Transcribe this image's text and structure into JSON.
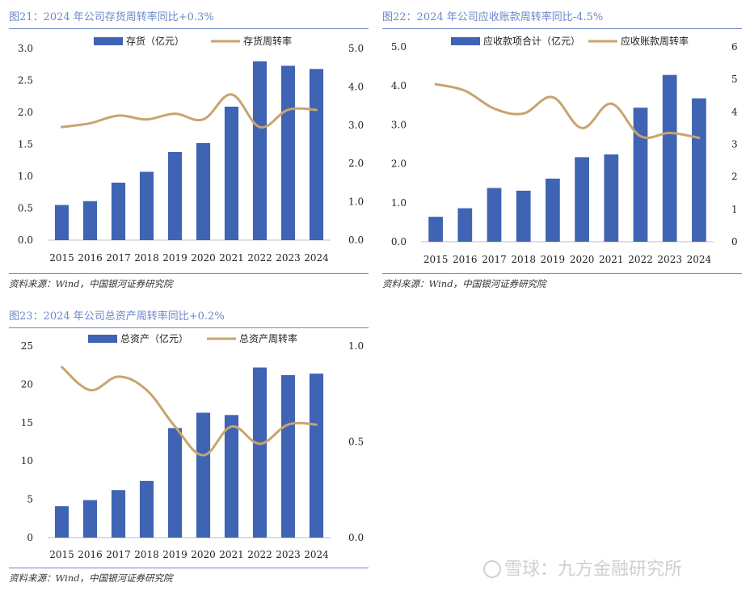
{
  "charts": [
    {
      "title": "图21：2024 年公司存货周转率同比+0.3%",
      "source": "资料来源：Wind，中国银河证券研究院",
      "chart_data": {
        "type": "bar",
        "categories": [
          "2015",
          "2016",
          "2017",
          "2018",
          "2019",
          "2020",
          "2021",
          "2022",
          "2023",
          "2024"
        ],
        "series": [
          {
            "name": "存货（亿元）",
            "type": "bar",
            "axis": "left",
            "values": [
              0.55,
              0.61,
              0.9,
              1.07,
              1.38,
              1.52,
              2.09,
              2.8,
              2.73,
              2.68
            ]
          },
          {
            "name": "存货周转率",
            "type": "line",
            "axis": "right",
            "values": [
              2.95,
              3.05,
              3.25,
              3.15,
              3.3,
              3.15,
              3.8,
              2.95,
              3.4,
              3.4
            ]
          }
        ],
        "ylim_left": [
          0,
          3.0
        ],
        "yticks_left": [
          "0.0",
          "0.5",
          "1.0",
          "1.5",
          "2.0",
          "2.5",
          "3.0"
        ],
        "ylim_right": [
          0,
          5.0
        ],
        "yticks_right": [
          "0.0",
          "1.0",
          "2.0",
          "3.0",
          "4.0",
          "5.0"
        ],
        "legend_position": "top-center",
        "grid": false,
        "bar_color": "#4064b4",
        "line_color": "#c8a46e"
      }
    },
    {
      "title": "图22：2024 年公司应收账款周转率同比-4.5%",
      "source": "资料来源：Wind，中国银河证券研究院",
      "chart_data": {
        "type": "bar",
        "categories": [
          "2015",
          "2016",
          "2017",
          "2018",
          "2019",
          "2020",
          "2021",
          "2022",
          "2023",
          "2024"
        ],
        "series": [
          {
            "name": "应收款项合计（亿元）",
            "type": "bar",
            "axis": "left",
            "values": [
              0.64,
              0.86,
              1.38,
              1.31,
              1.62,
              2.17,
              2.24,
              3.44,
              4.28,
              3.68
            ]
          },
          {
            "name": "应收账款周转率",
            "type": "line",
            "axis": "right",
            "values": [
              4.85,
              4.65,
              4.1,
              3.95,
              4.45,
              3.5,
              4.25,
              3.25,
              3.35,
              3.2
            ]
          }
        ],
        "ylim_left": [
          0,
          5.0
        ],
        "yticks_left": [
          "0.0",
          "1.0",
          "2.0",
          "3.0",
          "4.0",
          "5.0"
        ],
        "ylim_right": [
          0,
          6
        ],
        "yticks_right": [
          "0",
          "1",
          "2",
          "3",
          "4",
          "5",
          "6"
        ],
        "legend_position": "top-center",
        "grid": false,
        "bar_color": "#4064b4",
        "line_color": "#c8a46e"
      }
    },
    {
      "title": "图23：2024 年公司总资产周转率同比+0.2%",
      "source": "资料来源：Wind，中国银河证券研究院",
      "chart_data": {
        "type": "bar",
        "categories": [
          "2015",
          "2016",
          "2017",
          "2018",
          "2019",
          "2020",
          "2021",
          "2022",
          "2023",
          "2024"
        ],
        "series": [
          {
            "name": "总资产（亿元）",
            "type": "bar",
            "axis": "left",
            "values": [
              4.1,
              4.9,
              6.2,
              7.4,
              14.3,
              16.3,
              16.0,
              22.2,
              21.2,
              21.4
            ]
          },
          {
            "name": "总资产周转率",
            "type": "line",
            "axis": "right",
            "values": [
              0.89,
              0.77,
              0.84,
              0.77,
              0.58,
              0.43,
              0.58,
              0.49,
              0.59,
              0.59
            ]
          }
        ],
        "ylim_left": [
          0,
          25
        ],
        "yticks_left": [
          "0",
          "5",
          "10",
          "15",
          "20",
          "25"
        ],
        "ylim_right": [
          0,
          1.0
        ],
        "yticks_right": [
          "0.0",
          "0.5",
          "1.0"
        ],
        "legend_position": "top-center",
        "grid": false,
        "bar_color": "#4064b4",
        "line_color": "#c8a46e"
      }
    }
  ],
  "watermark": "雪球：九方金融研究所"
}
